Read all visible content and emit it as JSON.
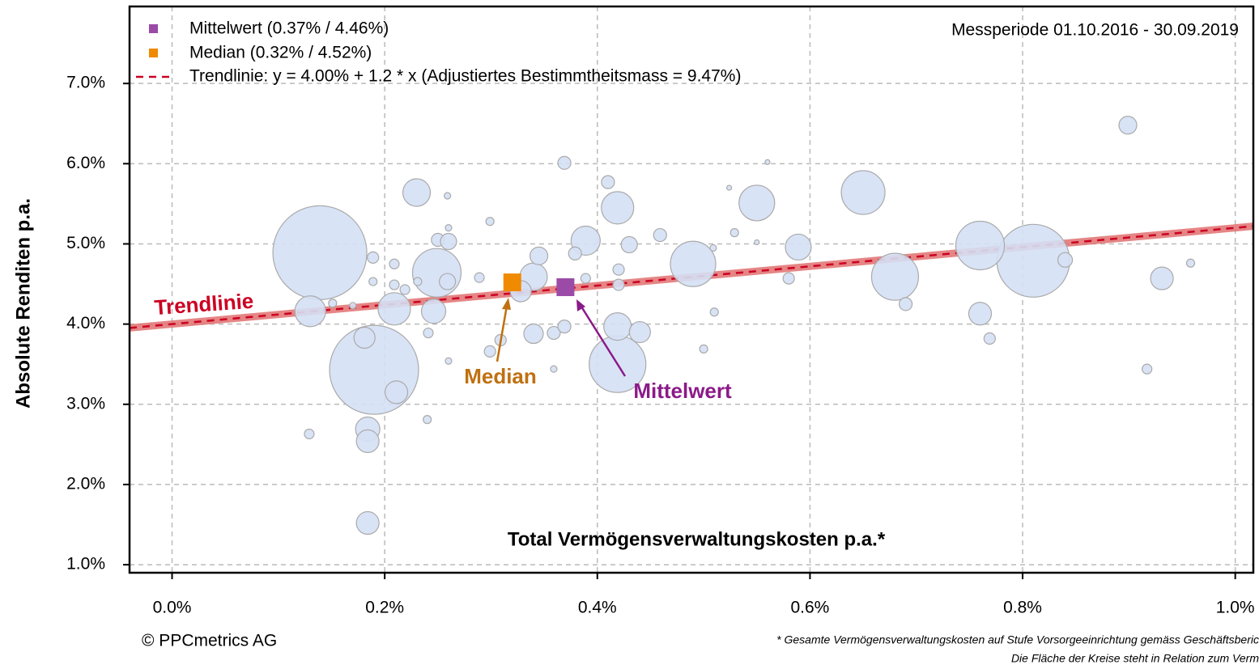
{
  "chart_data": {
    "type": "bubble",
    "xlabel": "Total Vermögensverwaltungskosten p.a.*",
    "ylabel": "Absolute Renditen p.a.",
    "period": "Messperiode 01.10.2016 - 30.09.2019",
    "copyright": "© PPCmetrics AG",
    "footnotes": [
      "* Gesamte Vermögensverwaltungskosten auf Stufe Vorsorgeeinrichtung gemäss Geschäftsberic",
      "Die Fläche der Kreise steht in Relation zum Verm"
    ],
    "xlim": [
      -0.04,
      1.017
    ],
    "ylim": [
      0.9,
      7.96
    ],
    "xticks": [
      {
        "value": 0,
        "label": "0.0%"
      },
      {
        "value": 0.2,
        "label": "0.2%"
      },
      {
        "value": 0.4,
        "label": "0.4%"
      },
      {
        "value": 0.6,
        "label": "0.6%"
      },
      {
        "value": 0.8,
        "label": "0.8%"
      },
      {
        "value": 1.0,
        "label": "1.0%"
      }
    ],
    "yticks": [
      {
        "value": 1,
        "label": "1.0%"
      },
      {
        "value": 2,
        "label": "2.0%"
      },
      {
        "value": 3,
        "label": "3.0%"
      },
      {
        "value": 4,
        "label": "4.0%"
      },
      {
        "value": 5,
        "label": "5.0%"
      },
      {
        "value": 6,
        "label": "6.0%"
      },
      {
        "value": 7,
        "label": "7.0%"
      }
    ],
    "grid": true,
    "color": "#d5e0f5",
    "x": [
      0.139,
      0.19,
      0.81,
      0.76,
      0.65,
      0.68,
      0.249,
      0.419,
      0.49,
      0.55,
      0.419,
      0.389,
      0.23,
      0.209,
      0.13,
      0.931,
      0.589,
      0.76,
      0.34,
      0.419,
      0.44,
      0.181,
      0.184,
      0.184,
      0.184,
      0.211,
      0.246,
      0.34,
      0.328,
      0.345,
      0.899,
      0.43,
      0.25,
      0.26,
      0.259,
      0.459,
      0.369,
      0.359,
      0.369,
      0.379,
      0.41,
      0.42,
      0.42,
      0.58,
      0.69,
      0.84,
      0.769,
      0.309,
      0.299,
      0.189,
      0.209,
      0.209,
      0.219,
      0.241,
      0.24,
      0.129,
      0.289,
      0.299,
      0.389,
      0.5,
      0.51,
      0.529,
      0.509,
      0.917,
      0.958,
      0.259,
      0.26,
      0.359,
      0.26,
      0.524,
      0.56,
      0.55,
      0.151,
      0.17,
      0.189,
      0.231
    ],
    "values": [
      4.89,
      3.43,
      4.79,
      4.98,
      5.64,
      4.59,
      4.64,
      3.5,
      4.75,
      5.51,
      5.45,
      5.04,
      5.64,
      4.19,
      4.16,
      4.57,
      4.96,
      4.13,
      4.59,
      3.97,
      3.9,
      3.83,
      2.69,
      2.54,
      1.52,
      3.15,
      4.16,
      3.88,
      4.41,
      4.85,
      6.48,
      4.99,
      5.05,
      5.03,
      4.53,
      5.11,
      6.01,
      3.89,
      3.97,
      4.88,
      5.77,
      4.68,
      4.49,
      4.57,
      4.25,
      4.8,
      3.82,
      3.8,
      3.66,
      4.83,
      4.75,
      4.49,
      4.43,
      3.89,
      2.81,
      2.63,
      4.58,
      5.28,
      4.57,
      3.69,
      4.15,
      5.14,
      4.95,
      3.44,
      4.76,
      5.6,
      3.54,
      3.44,
      5.2,
      5.7,
      6.02,
      5.02,
      4.26,
      4.23,
      4.53,
      4.53
    ],
    "sizes": [
      58,
      55,
      45,
      30,
      27,
      29,
      30,
      35,
      28,
      22,
      20,
      18,
      17,
      20,
      19,
      14,
      16,
      14,
      17,
      17,
      13,
      13,
      15,
      14,
      14,
      14,
      15,
      12,
      13,
      11,
      11,
      10,
      8,
      10,
      10,
      8,
      8,
      8,
      8,
      8,
      8,
      7,
      7,
      7,
      8,
      9,
      7,
      7,
      7,
      7,
      6,
      6,
      6,
      6,
      5,
      6,
      6,
      5,
      6,
      5,
      5,
      5,
      4,
      6,
      5,
      4,
      4,
      4,
      4,
      3,
      3,
      3,
      5,
      4,
      5,
      5
    ],
    "mean": {
      "name": "Mittelwert (0.37% / 4.46%)",
      "x": 0.37,
      "y": 4.46,
      "color": "#9b4aa8",
      "label": "Mittelwert",
      "label_color": "#8b1a89"
    },
    "median": {
      "name": "Median (0.32% / 4.52%)",
      "x": 0.32,
      "y": 4.52,
      "color": "#f08a00",
      "label": "Median",
      "label_color": "#c07010"
    },
    "trendline": {
      "name": "Trendlinie: y = 4.00% + 1.2 * x (Adjustiertes Bestimmtheitsmass = 9.47%)",
      "intercept": 4.0,
      "slope": 1.2,
      "color": "#cc0022",
      "label": "Trendlinie"
    }
  }
}
